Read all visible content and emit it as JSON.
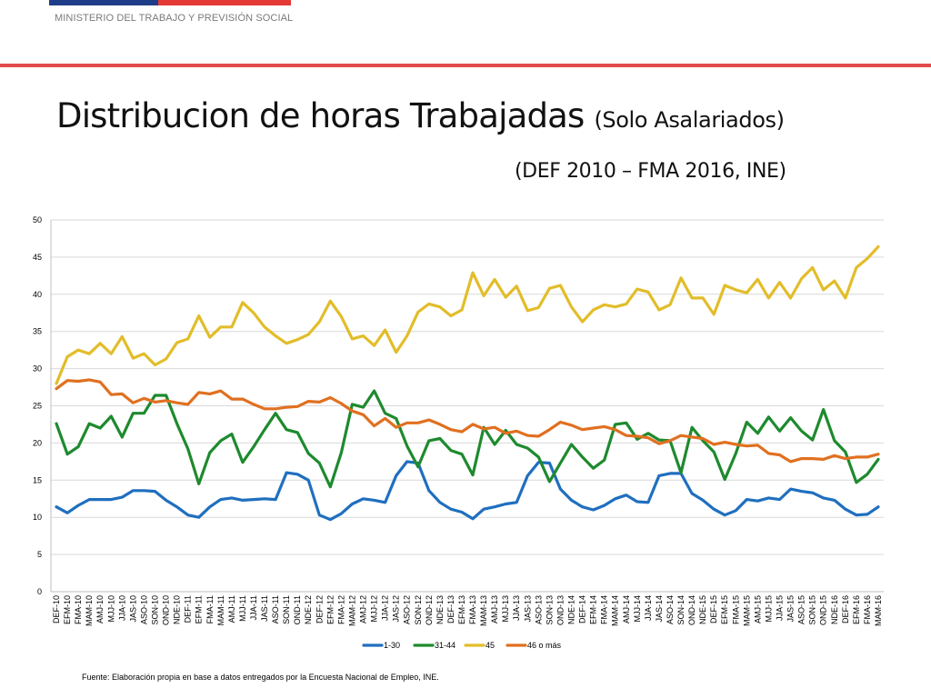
{
  "header": {
    "ministry": "MINISTERIO DEL TRABAJO Y PREVISIÓN SOCIAL",
    "title_main": "Distribucion de horas Trabajadas",
    "title_sub": "(Solo Asalariados)",
    "subtitle": "(DEF 2010 – FMA 2016, INE)"
  },
  "footer": {
    "source": "Fuente: Elaboración propia en base a datos entregados por la Encuesta Nacional de Empleo, INE."
  },
  "colors": {
    "brand_blue": "#1f3c88",
    "brand_red": "#e53935"
  },
  "chart_data": {
    "type": "line",
    "title": "",
    "xlabel": "",
    "ylabel": "",
    "ylim": [
      0,
      50
    ],
    "yticks": [
      0,
      5,
      10,
      15,
      20,
      25,
      30,
      35,
      40,
      45,
      50
    ],
    "grid": "horizontal",
    "legend": "bottom",
    "categories": [
      "DEF-10",
      "EFM-10",
      "FMA-10",
      "MAM-10",
      "AMJ-10",
      "MJJ-10",
      "JJA-10",
      "JAS-10",
      "ASO-10",
      "SON-10",
      "OND-10",
      "NDE-10",
      "DEF-11",
      "EFM-11",
      "FMA-11",
      "MAM-11",
      "AMJ-11",
      "MJJ-11",
      "JJA-11",
      "JAS-11",
      "ASO-11",
      "SON-11",
      "OND-11",
      "NDE-12",
      "DEF-12",
      "EFM-12",
      "FMA-12",
      "MAM-12",
      "AMJ-12",
      "MJJ-12",
      "JJA-12",
      "JAS-12",
      "ASO-12",
      "SON-12",
      "OND-12",
      "NDE-13",
      "DEF-13",
      "EFM-13",
      "FMA-13",
      "MAM-13",
      "AMJ-13",
      "MJJ-13",
      "JJA-13",
      "JAS-13",
      "ASO-13",
      "SON-13",
      "OND-13",
      "NDE-14",
      "DEF-14",
      "EFM-14",
      "FMA-14",
      "MAM-14",
      "AMJ-14",
      "MJJ-14",
      "JJA-14",
      "JAS-14",
      "ASO-14",
      "SON-14",
      "OND-14",
      "NDE-15",
      "DEF-15",
      "EFM-15",
      "FMA-15",
      "MAM-15",
      "AMJ-15",
      "MJJ-15",
      "JJA-15",
      "JAS-15",
      "ASO-15",
      "SON-15",
      "OND-15",
      "NDE-16",
      "DEF-16",
      "EFM-16",
      "FMA-16",
      "MAM-16"
    ],
    "series": [
      {
        "name": "1-30",
        "color": "#1f6fbf",
        "values": [
          11.4,
          10.6,
          11.6,
          12.4,
          12.4,
          12.4,
          12.7,
          13.6,
          13.6,
          13.5,
          12.3,
          11.4,
          10.3,
          10.0,
          11.4,
          12.4,
          12.6,
          12.3,
          12.4,
          12.5,
          12.4,
          16.0,
          15.8,
          15.0,
          10.3,
          9.7,
          10.5,
          11.8,
          12.5,
          12.3,
          12.0,
          15.6,
          17.5,
          17.3,
          13.6,
          12.0,
          11.1,
          10.7,
          9.8,
          11.1,
          11.4,
          11.8,
          12.0,
          15.6,
          17.4,
          17.3,
          13.8,
          12.3,
          11.4,
          11.0,
          11.6,
          12.5,
          13.0,
          12.1,
          12.0,
          15.6,
          15.9,
          15.9,
          13.2,
          12.3,
          11.1,
          10.3,
          10.9,
          12.4,
          12.2,
          12.6,
          12.4,
          13.8,
          13.5,
          13.3,
          12.6,
          12.3,
          11.1,
          10.3,
          10.4,
          11.4
        ]
      },
      {
        "name": "31-44",
        "color": "#1e8a2e",
        "values": [
          22.6,
          18.5,
          19.5,
          22.6,
          22.0,
          23.6,
          20.8,
          24.0,
          24.0,
          26.4,
          26.4,
          22.6,
          19.2,
          14.5,
          18.7,
          20.3,
          21.2,
          17.4,
          19.5,
          21.8,
          24.0,
          21.8,
          21.4,
          18.6,
          17.3,
          14.1,
          18.7,
          25.2,
          24.8,
          27.0,
          24.0,
          23.3,
          19.6,
          16.8,
          20.3,
          20.6,
          19.0,
          18.5,
          15.7,
          22.1,
          19.8,
          21.7,
          19.8,
          19.3,
          18.1,
          14.8,
          17.3,
          19.8,
          18.1,
          16.6,
          17.7,
          22.5,
          22.7,
          20.5,
          21.3,
          20.4,
          20.3,
          16.0,
          22.1,
          20.3,
          18.8,
          15.1,
          18.6,
          22.8,
          21.3,
          23.5,
          21.6,
          23.4,
          21.6,
          20.4,
          24.5,
          20.3,
          18.8,
          14.7,
          15.8,
          17.8
        ]
      },
      {
        "name": "45",
        "color": "#e2bd2a",
        "values": [
          28.0,
          31.6,
          32.5,
          32.0,
          33.4,
          32.0,
          34.3,
          31.4,
          32.0,
          30.5,
          31.3,
          33.5,
          34.0,
          37.1,
          34.2,
          35.6,
          35.6,
          38.9,
          37.5,
          35.6,
          34.4,
          33.4,
          33.9,
          34.6,
          36.3,
          39.1,
          37.0,
          34.0,
          34.4,
          33.1,
          35.2,
          32.2,
          34.4,
          37.6,
          38.7,
          38.3,
          37.1,
          37.9,
          42.9,
          39.8,
          42.0,
          39.6,
          41.1,
          37.8,
          38.2,
          40.8,
          41.2,
          38.3,
          36.3,
          37.9,
          38.6,
          38.3,
          38.7,
          40.7,
          40.3,
          37.9,
          38.6,
          42.2,
          39.5,
          39.5,
          37.3,
          41.2,
          40.6,
          40.2,
          42.0,
          39.5,
          41.6,
          39.5,
          42.1,
          43.6,
          40.6,
          41.8,
          39.5,
          43.6,
          44.8,
          46.4
        ]
      },
      {
        "name": "46 o más",
        "color": "#e07020",
        "values": [
          27.3,
          28.4,
          28.3,
          28.5,
          28.2,
          26.5,
          26.6,
          25.4,
          26.0,
          25.5,
          25.7,
          25.4,
          25.2,
          26.8,
          26.6,
          27.0,
          25.9,
          25.9,
          25.2,
          24.6,
          24.6,
          24.8,
          24.9,
          25.6,
          25.5,
          26.1,
          25.3,
          24.3,
          23.8,
          22.3,
          23.3,
          22.1,
          22.7,
          22.7,
          23.1,
          22.5,
          21.8,
          21.5,
          22.5,
          21.9,
          22.1,
          21.3,
          21.6,
          21.0,
          20.9,
          21.8,
          22.8,
          22.4,
          21.8,
          22.0,
          22.2,
          21.8,
          21.0,
          20.9,
          20.7,
          19.9,
          20.3,
          21.0,
          20.8,
          20.6,
          19.8,
          20.1,
          19.8,
          19.6,
          19.7,
          18.6,
          18.4,
          17.5,
          17.9,
          17.9,
          17.8,
          18.3,
          17.9,
          18.1,
          18.1,
          18.5
        ]
      }
    ]
  }
}
